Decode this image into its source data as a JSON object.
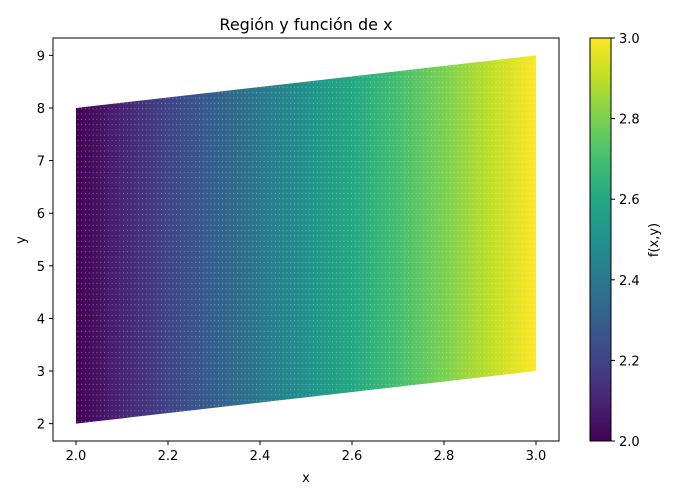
{
  "chart_data": {
    "type": "scatter",
    "title": "Región y función de x",
    "xlabel": "x",
    "ylabel": "y",
    "xlim": [
      1.95,
      3.05
    ],
    "ylim": [
      1.67,
      9.33
    ],
    "xticks": [
      "2.0",
      "2.2",
      "2.4",
      "2.6",
      "2.8",
      "3.0"
    ],
    "yticks": [
      "2",
      "3",
      "4",
      "5",
      "6",
      "7",
      "8",
      "9"
    ],
    "grid": false,
    "region": {
      "x_range": [
        2.0,
        3.0
      ],
      "y_lower": "x",
      "y_upper": "x + 6",
      "note_y_lower_values": [
        [
          2.0,
          2.0
        ],
        [
          3.0,
          3.0
        ]
      ],
      "note_y_upper_values": [
        [
          2.0,
          8.0
        ],
        [
          3.0,
          9.0
        ]
      ],
      "grid_points": [
        100,
        100
      ],
      "color_value": "x"
    },
    "colorbar": {
      "label": "f(x,y)",
      "range": [
        2.0,
        3.0
      ],
      "ticks": [
        "2.0",
        "2.2",
        "2.4",
        "2.6",
        "2.8",
        "3.0"
      ],
      "colormap": "viridis"
    },
    "marker_color_low": "#440154",
    "marker_color_high": "#fde725"
  }
}
